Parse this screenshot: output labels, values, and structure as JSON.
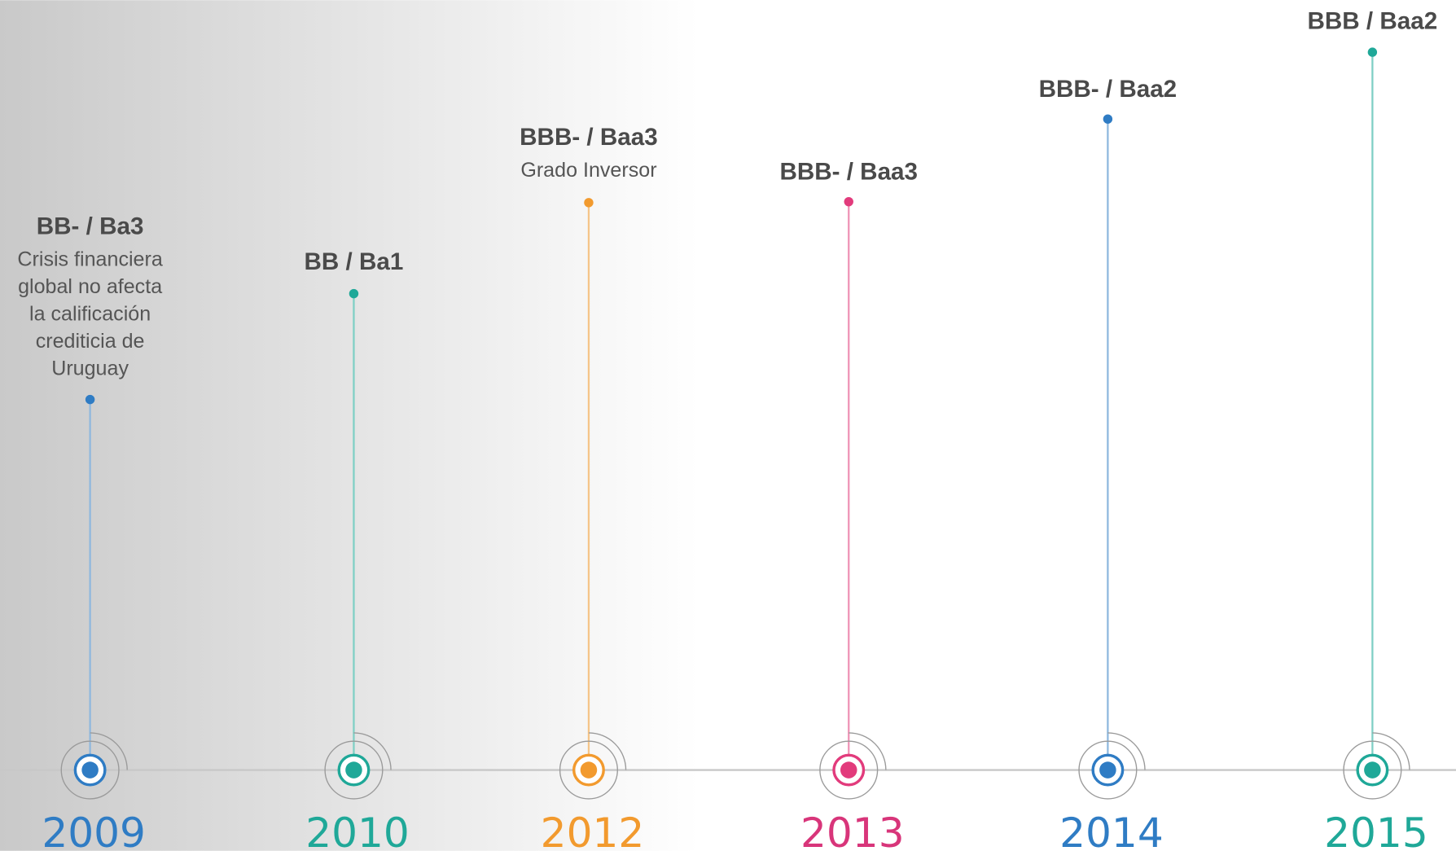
{
  "events": [
    {
      "year": "2009",
      "rating": "BB- / Ba3",
      "note": [
        "Crisis financiera",
        "global no afecta",
        "la calificación",
        "crediticia de",
        "Uruguay"
      ]
    },
    {
      "year": "2010",
      "rating": "BB / Ba1"
    },
    {
      "year": "2012",
      "rating": "BBB- / Baa3",
      "note": [
        "Grado Inversor"
      ]
    },
    {
      "year": "2013",
      "rating": "BBB- / Baa3"
    },
    {
      "year": "2014",
      "rating": "BBB- / Baa2"
    },
    {
      "year": "2015",
      "rating": "BBB / Baa2"
    }
  ]
}
